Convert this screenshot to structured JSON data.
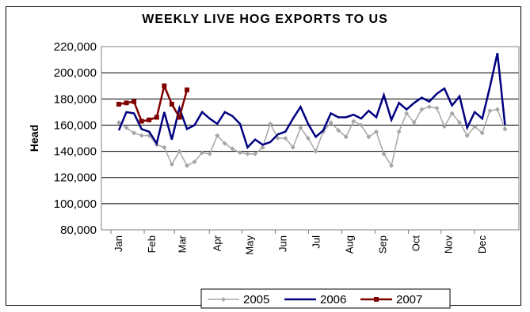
{
  "chart_data": {
    "type": "line",
    "title": "WEEKLY LIVE HOG EXPORTS TO US",
    "ylabel": "Head",
    "xlabel": "",
    "ylim": [
      80000,
      220000
    ],
    "y_ticks": [
      "80,000",
      "100,000",
      "120,000",
      "140,000",
      "160,000",
      "180,000",
      "200,000",
      "220,000"
    ],
    "y_tick_values": [
      80000,
      100000,
      120000,
      140000,
      160000,
      180000,
      200000,
      220000
    ],
    "x_range": [
      0,
      52
    ],
    "x_ticks": [
      {
        "label": "Jan",
        "week": 0
      },
      {
        "label": "Feb",
        "week": 4.4
      },
      {
        "label": "Mar",
        "week": 8.4
      },
      {
        "label": "Apr",
        "week": 13.0
      },
      {
        "label": "May",
        "week": 17.3
      },
      {
        "label": "Jun",
        "week": 21.7
      },
      {
        "label": "Jul",
        "week": 26.1
      },
      {
        "label": "Aug",
        "week": 30.5
      },
      {
        "label": "Sep",
        "week": 34.9
      },
      {
        "label": "Oct",
        "week": 39.3
      },
      {
        "label": "Nov",
        "week": 43.6
      },
      {
        "label": "Dec",
        "week": 48.0
      }
    ],
    "grid": true,
    "legend_position": "bottom",
    "series": [
      {
        "name": "2005",
        "color": "#a6a6a6",
        "marker": "diamond",
        "values": [
          162000,
          158000,
          154000,
          152000,
          152000,
          145000,
          143000,
          130000,
          140000,
          129000,
          132000,
          139000,
          138000,
          152000,
          146000,
          142000,
          139000,
          138000,
          138000,
          143000,
          161000,
          150000,
          150000,
          143000,
          158000,
          150000,
          140000,
          155000,
          162000,
          156000,
          151000,
          163000,
          160000,
          151000,
          155000,
          138000,
          129000,
          155000,
          169000,
          162000,
          172000,
          174000,
          173000,
          159000,
          169000,
          162000,
          152000,
          159000,
          154000,
          171000,
          172000,
          157000
        ]
      },
      {
        "name": "2006",
        "color": "#000080",
        "marker": "none",
        "values": [
          156000,
          170000,
          169000,
          157000,
          155000,
          146000,
          170000,
          149000,
          173000,
          157000,
          160000,
          170000,
          165000,
          161000,
          170000,
          167000,
          161000,
          143000,
          149000,
          145000,
          147000,
          153000,
          155000,
          165000,
          174000,
          161000,
          151000,
          156000,
          169000,
          166000,
          166000,
          168000,
          165000,
          171000,
          166000,
          183000,
          164000,
          177000,
          172000,
          177000,
          181000,
          178000,
          184000,
          188000,
          175000,
          182000,
          158000,
          170000,
          165000,
          189000,
          215000,
          160000
        ]
      },
      {
        "name": "2007",
        "color": "#800000",
        "marker": "square",
        "values": [
          176000,
          177000,
          178000,
          163000,
          164000,
          166000,
          190000,
          176000,
          166000,
          187000
        ]
      }
    ]
  }
}
